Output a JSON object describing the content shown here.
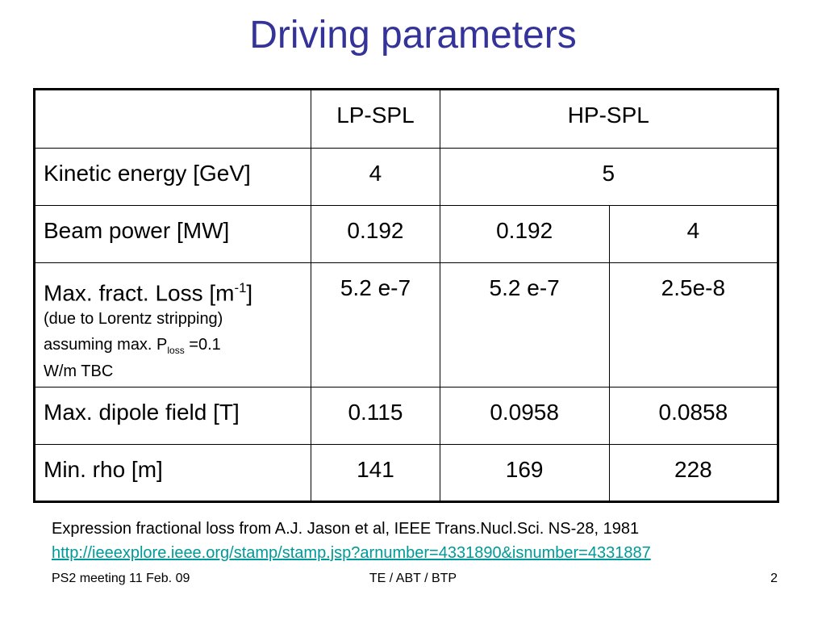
{
  "slide": {
    "title": "Driving parameters",
    "table": {
      "header": [
        "",
        "LP-SPL",
        "HP-SPL"
      ],
      "rows": [
        {
          "label": "Kinetic energy [GeV]",
          "values": [
            "4",
            "5"
          ]
        },
        {
          "label": "Beam power [MW]",
          "values": [
            "0.192",
            "0.192",
            "4"
          ]
        },
        {
          "label_main": "Max. fract. Loss [m",
          "label_sup": "-1",
          "label_close": "]",
          "note1": "(due to Lorentz stripping)",
          "note2_pre": "assuming max. P",
          "note2_sub": "loss",
          "note2_post": " =0.1",
          "note3": "W/m TBC",
          "values": [
            "5.2 e-7",
            "5.2 e-7",
            "2.5e-8"
          ]
        },
        {
          "label": "Max. dipole field [T]",
          "values": [
            "0.115",
            "0.0958",
            "0.0858"
          ]
        },
        {
          "label": "Min. rho [m]",
          "values": [
            "141",
            "169",
            "228"
          ]
        }
      ]
    },
    "footnote": {
      "text": "Expression fractional loss from A.J. Jason et al, IEEE Trans.Nucl.Sci. NS-28, 1981",
      "link": "http://ieeexplore.ieee.org/stamp/stamp.jsp?arnumber=4331890&isnumber=4331887"
    },
    "footer": {
      "left": "PS2 meeting 11 Feb. 09",
      "center": "TE / ABT / BTP",
      "page": "2"
    }
  },
  "colors": {
    "title": "#333399",
    "link": "#009999"
  }
}
